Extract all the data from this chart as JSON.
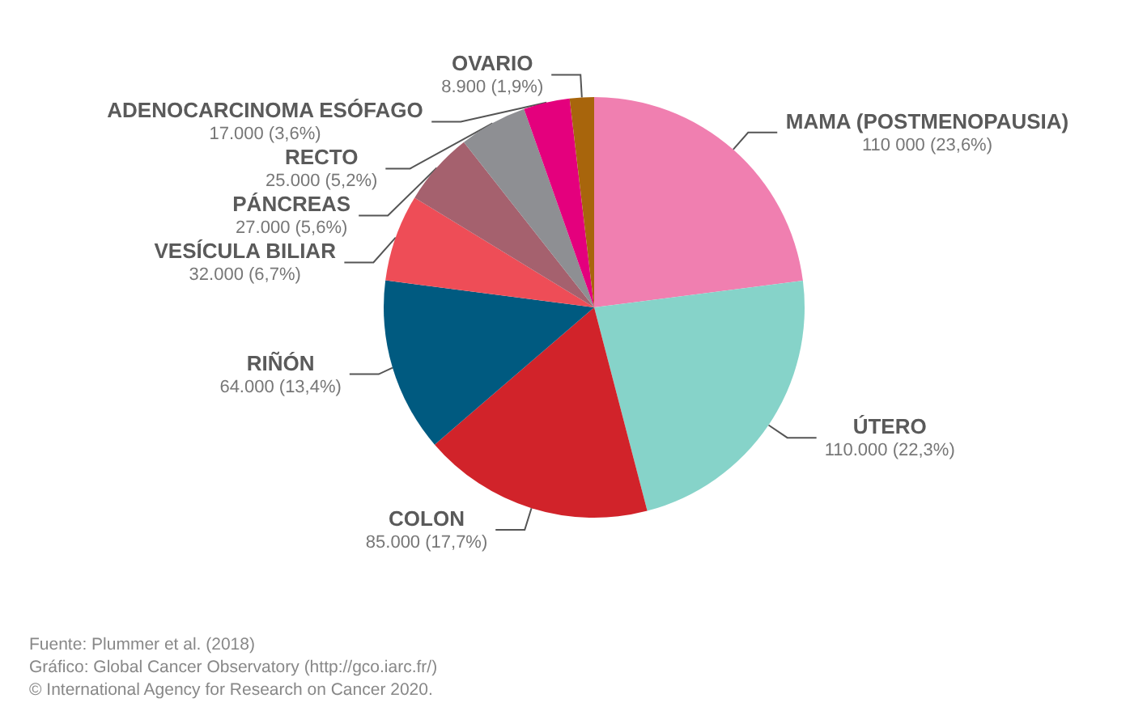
{
  "chart_data": {
    "type": "pie",
    "categories": [
      "MAMA (POSTMENOPAUSIA)",
      "ÚTERO",
      "COLON",
      "RIÑÓN",
      "VESÍCULA BILIAR",
      "PÁNCREAS",
      "RECTO",
      "ADENOCARCINOMA ESÓFAGO",
      "OVARIO"
    ],
    "values": [
      110000,
      110000,
      85000,
      64000,
      32000,
      27000,
      25000,
      17000,
      8900
    ],
    "value_labels": [
      "110 000 (23,6%)",
      "110.000 (22,3%)",
      "85.000 (17,7%)",
      "64.000 (13,4%)",
      "32.000 (6,7%)",
      "27.000 (5,6%)",
      "25.000 (5,2%)",
      "17.000 (3,6%)",
      "8.900 (1,9%)"
    ],
    "colors": [
      "#f07fb0",
      "#86d3c9",
      "#d1232a",
      "#005a80",
      "#ee4d57",
      "#a5616e",
      "#8e8f93",
      "#e4007d",
      "#a8650c"
    ],
    "annotations": [
      "Fuente: Plummer et al. (2018)",
      "Gráfico: Global Cancer Observatory (http://gco.iarc.fr/)",
      "© International Agency for Research on Cancer 2020."
    ],
    "legend": false
  }
}
